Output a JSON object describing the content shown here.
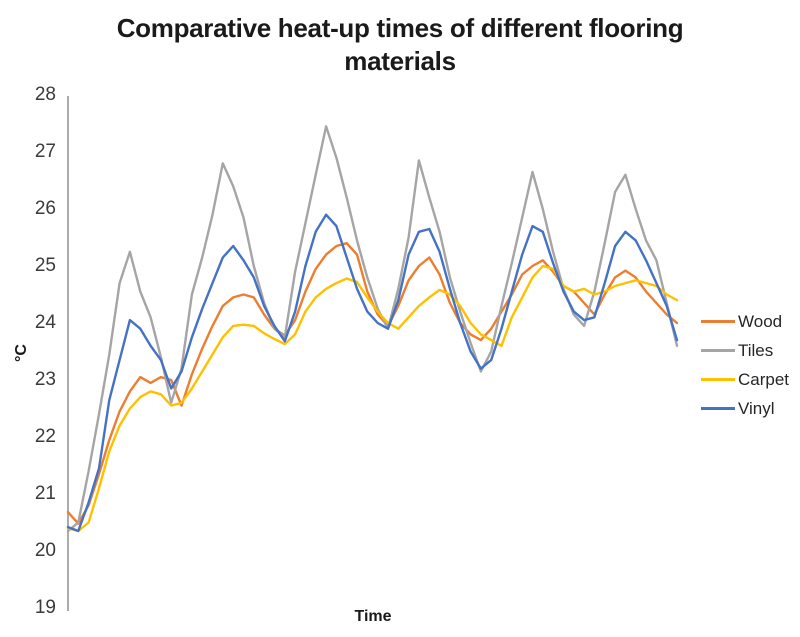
{
  "title": {
    "line1": "Comparative heat-up times of different flooring",
    "line2": "materials"
  },
  "y_axis": {
    "label": "°C",
    "tick_labels": [
      "28",
      "27",
      "26",
      "25",
      "24",
      "23",
      "22",
      "21",
      "20",
      "19"
    ]
  },
  "x_axis": {
    "label": "Time"
  },
  "legend": {
    "items": [
      {
        "label": "Wood",
        "color": "#ED7D31"
      },
      {
        "label": "Tiles",
        "color": "#A5A5A5"
      },
      {
        "label": "Carpet",
        "color": "#FFC000"
      },
      {
        "label": "Vinyl",
        "color": "#4472C4"
      }
    ]
  },
  "chart_data": {
    "type": "line",
    "title": "Comparative heat-up times of different flooring materials",
    "xlabel": "Time",
    "ylabel": "°C",
    "ylim": [
      19,
      28
    ],
    "ytick_step": 1,
    "grid": false,
    "x_tick_labels_visible": false,
    "legend_position": "right",
    "n_points": 60,
    "series": [
      {
        "name": "Wood",
        "color": "#ED7D31",
        "values": [
          20.68,
          20.48,
          20.8,
          21.35,
          21.95,
          22.45,
          22.8,
          23.05,
          22.95,
          23.05,
          23.0,
          22.55,
          23.1,
          23.55,
          23.95,
          24.3,
          24.45,
          24.5,
          24.45,
          24.15,
          23.9,
          23.78,
          24.05,
          24.55,
          24.95,
          25.2,
          25.35,
          25.4,
          25.2,
          24.55,
          24.15,
          23.95,
          24.3,
          24.75,
          25.0,
          25.15,
          24.85,
          24.35,
          24.0,
          23.8,
          23.7,
          23.9,
          24.2,
          24.5,
          24.85,
          25.0,
          25.1,
          24.9,
          24.65,
          24.55,
          24.35,
          24.15,
          24.5,
          24.8,
          24.92,
          24.8,
          24.55,
          24.35,
          24.15,
          24.0
        ]
      },
      {
        "name": "Tiles",
        "color": "#A5A5A5",
        "values": [
          20.35,
          20.5,
          21.4,
          22.4,
          23.45,
          24.7,
          25.25,
          24.55,
          24.1,
          23.4,
          22.6,
          23.2,
          24.5,
          25.15,
          25.9,
          26.8,
          26.4,
          25.85,
          25.0,
          24.35,
          23.9,
          23.75,
          24.9,
          25.75,
          26.6,
          27.45,
          26.9,
          26.2,
          25.45,
          24.8,
          24.25,
          23.9,
          24.6,
          25.5,
          26.85,
          26.2,
          25.6,
          24.8,
          24.2,
          23.65,
          23.15,
          23.5,
          24.3,
          25.05,
          25.85,
          26.65,
          26.0,
          25.25,
          24.6,
          24.15,
          23.95,
          24.55,
          25.4,
          26.3,
          26.6,
          26.0,
          25.45,
          25.1,
          24.35,
          23.6
        ]
      },
      {
        "name": "Carpet",
        "color": "#FFC000",
        "values": [
          20.4,
          20.35,
          20.5,
          21.1,
          21.75,
          22.2,
          22.5,
          22.7,
          22.8,
          22.75,
          22.55,
          22.6,
          22.85,
          23.15,
          23.45,
          23.75,
          23.95,
          23.97,
          23.95,
          23.82,
          23.72,
          23.63,
          23.8,
          24.2,
          24.45,
          24.6,
          24.7,
          24.78,
          24.72,
          24.45,
          24.2,
          24.0,
          23.9,
          24.1,
          24.3,
          24.45,
          24.58,
          24.5,
          24.3,
          24.0,
          23.8,
          23.7,
          23.6,
          24.1,
          24.45,
          24.8,
          25.0,
          24.95,
          24.65,
          24.55,
          24.6,
          24.5,
          24.55,
          24.65,
          24.7,
          24.75,
          24.7,
          24.65,
          24.5,
          24.4
        ]
      },
      {
        "name": "Vinyl",
        "color": "#4472C4",
        "values": [
          20.42,
          20.35,
          20.85,
          21.45,
          22.65,
          23.35,
          24.05,
          23.9,
          23.6,
          23.35,
          22.85,
          23.15,
          23.75,
          24.25,
          24.7,
          25.15,
          25.35,
          25.1,
          24.8,
          24.3,
          23.95,
          23.68,
          24.2,
          25.0,
          25.6,
          25.9,
          25.7,
          25.15,
          24.6,
          24.2,
          24.0,
          23.9,
          24.4,
          25.2,
          25.6,
          25.65,
          25.25,
          24.6,
          24.0,
          23.5,
          23.2,
          23.35,
          23.9,
          24.55,
          25.2,
          25.7,
          25.6,
          25.05,
          24.55,
          24.2,
          24.05,
          24.1,
          24.7,
          25.35,
          25.6,
          25.45,
          25.1,
          24.7,
          24.3,
          23.7
        ]
      }
    ]
  }
}
